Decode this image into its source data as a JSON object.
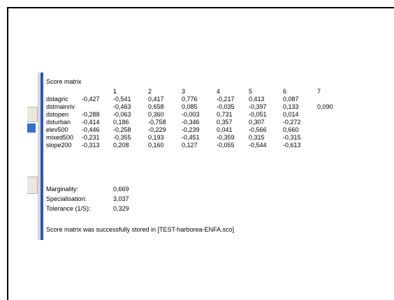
{
  "title": "Score matrix",
  "column_headers": [
    "1",
    "2",
    "3",
    "4",
    "5",
    "6",
    "7"
  ],
  "rows": [
    {
      "name": "dstagric",
      "values": [
        "-0,427",
        "-0,541",
        "0,417",
        "0,776",
        "-0,217",
        "0,413",
        "0,087"
      ]
    },
    {
      "name": "dstmainriv",
      "values": [
        "-0,463",
        "0,658",
        "0,085",
        "-0,035",
        "-0,397",
        "0,133",
        "0,090"
      ]
    },
    {
      "name": "dstopen",
      "values": [
        "-0,288",
        "-0,063",
        "0,360",
        "-0,003",
        "0,731",
        "-0,051",
        "0,014"
      ]
    },
    {
      "name": "dsturban",
      "values": [
        "-0,414",
        "0,186",
        "-0,758",
        "-0,346",
        "0,357",
        "0,307",
        "-0,272"
      ]
    },
    {
      "name": "elev500",
      "values": [
        "-0,446",
        "-0,258",
        "-0,229",
        "-0,239",
        "0,041",
        "-0,566",
        "0,660"
      ]
    },
    {
      "name": "mixed500",
      "values": [
        "-0,231",
        "-0,355",
        "0,193",
        "-0,451",
        "-0,359",
        "0,315",
        "-0,315"
      ]
    },
    {
      "name": "slope200",
      "values": [
        "-0,313",
        "0,208",
        "0,160",
        "0,127",
        "-0,055",
        "-0,544",
        "-0,613"
      ]
    }
  ],
  "stats": {
    "marginality_label": "Marginality:",
    "marginality_value": "0,669",
    "specialisation_label": "Specialisation:",
    "specialisation_value": "3,037",
    "tolerance_label": "Tolerance (1/S):",
    "tolerance_value": "0,329"
  },
  "status_message": "Score matrix was successfully stored in [TEST-harborea-ENFA.sco]",
  "colors": {
    "accent": "#2956c9",
    "marker": "#2f6fd6"
  }
}
